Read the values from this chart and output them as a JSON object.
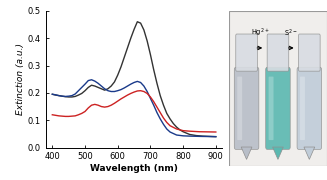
{
  "black_x": [
    400,
    410,
    420,
    430,
    440,
    450,
    460,
    470,
    480,
    490,
    500,
    510,
    520,
    530,
    540,
    550,
    560,
    570,
    580,
    590,
    600,
    610,
    620,
    630,
    640,
    650,
    660,
    670,
    680,
    690,
    700,
    710,
    720,
    730,
    740,
    750,
    760,
    770,
    780,
    790,
    800,
    820,
    840,
    860,
    880,
    900
  ],
  "black_y": [
    0.195,
    0.192,
    0.19,
    0.188,
    0.186,
    0.185,
    0.185,
    0.187,
    0.192,
    0.198,
    0.208,
    0.22,
    0.228,
    0.225,
    0.22,
    0.215,
    0.21,
    0.215,
    0.225,
    0.24,
    0.265,
    0.295,
    0.33,
    0.365,
    0.4,
    0.432,
    0.46,
    0.455,
    0.43,
    0.39,
    0.34,
    0.285,
    0.235,
    0.19,
    0.155,
    0.125,
    0.105,
    0.088,
    0.075,
    0.065,
    0.058,
    0.048,
    0.044,
    0.042,
    0.041,
    0.04
  ],
  "blue_x": [
    400,
    410,
    420,
    430,
    440,
    450,
    460,
    470,
    480,
    490,
    500,
    510,
    520,
    530,
    540,
    550,
    560,
    570,
    580,
    590,
    600,
    610,
    620,
    630,
    640,
    650,
    660,
    670,
    680,
    690,
    700,
    710,
    720,
    730,
    740,
    750,
    760,
    780,
    800,
    820,
    850,
    900
  ],
  "blue_y": [
    0.195,
    0.193,
    0.19,
    0.188,
    0.187,
    0.188,
    0.19,
    0.196,
    0.208,
    0.22,
    0.232,
    0.245,
    0.248,
    0.243,
    0.235,
    0.225,
    0.215,
    0.208,
    0.205,
    0.205,
    0.208,
    0.212,
    0.218,
    0.225,
    0.232,
    0.238,
    0.242,
    0.238,
    0.225,
    0.205,
    0.18,
    0.155,
    0.128,
    0.105,
    0.085,
    0.068,
    0.057,
    0.046,
    0.043,
    0.042,
    0.041,
    0.04
  ],
  "red_x": [
    400,
    410,
    420,
    430,
    440,
    450,
    460,
    470,
    480,
    490,
    500,
    510,
    520,
    530,
    540,
    550,
    560,
    570,
    580,
    590,
    600,
    610,
    620,
    630,
    640,
    650,
    660,
    670,
    680,
    690,
    700,
    710,
    720,
    730,
    740,
    750,
    760,
    780,
    800,
    820,
    850,
    900
  ],
  "red_y": [
    0.12,
    0.118,
    0.116,
    0.115,
    0.114,
    0.114,
    0.115,
    0.116,
    0.12,
    0.125,
    0.132,
    0.145,
    0.155,
    0.158,
    0.155,
    0.15,
    0.148,
    0.15,
    0.155,
    0.162,
    0.17,
    0.178,
    0.185,
    0.192,
    0.198,
    0.203,
    0.207,
    0.208,
    0.205,
    0.198,
    0.185,
    0.168,
    0.148,
    0.128,
    0.108,
    0.092,
    0.08,
    0.068,
    0.062,
    0.06,
    0.058,
    0.057
  ],
  "black_color": "#333333",
  "blue_color": "#1a3a8a",
  "red_color": "#cc2222",
  "xlabel": "Wavelength (nm)",
  "ylabel": "Extinction (a.u.)",
  "xlim": [
    380,
    920
  ],
  "ylim": [
    0,
    0.5
  ],
  "xticks": [
    400,
    500,
    600,
    700,
    800,
    900
  ],
  "yticks": [
    0.0,
    0.1,
    0.2,
    0.3,
    0.4,
    0.5
  ],
  "hg_label": "Hg$^{2+}$",
  "s_label": "S$^{2-}$",
  "line_width": 1.0,
  "bg_color": "#f0eeec",
  "tube1_body": "#b8bec8",
  "tube2_body": "#5ab8b0",
  "tube3_body": "#c0ccd8",
  "tube_cap": "#d8dce2",
  "tube_edge": "#909090"
}
